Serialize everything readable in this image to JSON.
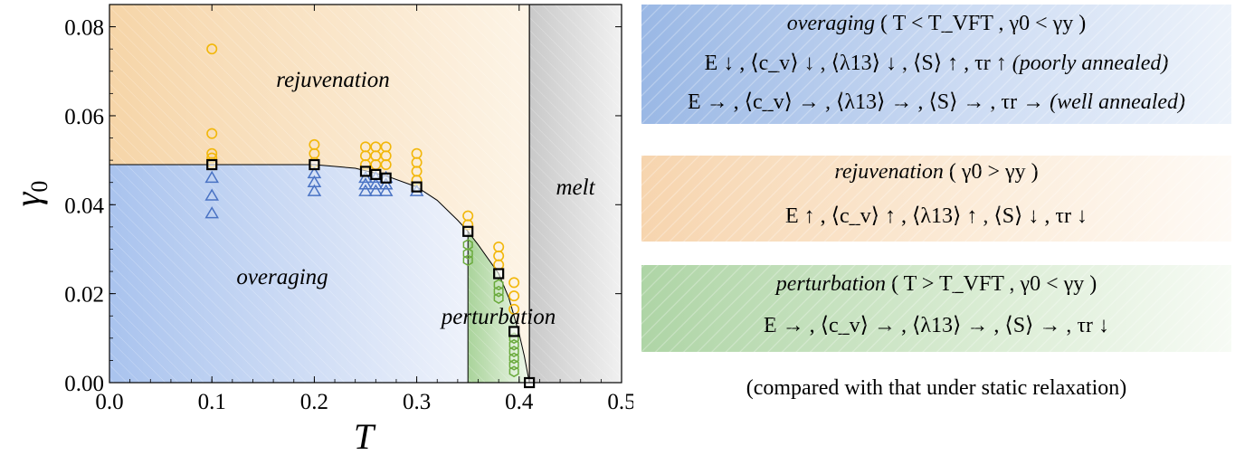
{
  "chart_data": {
    "type": "scatter",
    "xlabel": "T",
    "ylabel": "γ0",
    "xlim": [
      0.0,
      0.5
    ],
    "ylim": [
      0.0,
      0.085
    ],
    "x_ticks": [
      "0.0",
      "0.1",
      "0.2",
      "0.3",
      "0.4",
      "0.5"
    ],
    "y_ticks": [
      "0.00",
      "0.02",
      "0.04",
      "0.06",
      "0.08"
    ],
    "regions": {
      "rejuvenation": "rejuvenation",
      "overaging": "overaging",
      "perturbation": "perturbation",
      "melt": "melt"
    },
    "boundaries": {
      "T_VFT": 0.35,
      "T_melt": 0.41,
      "plateau_gamma": 0.049
    },
    "series": [
      {
        "marker": "circle",
        "color": "#f2b70a",
        "points": [
          [
            0.1,
            0.075
          ],
          [
            0.1,
            0.056
          ],
          [
            0.1,
            0.0515
          ],
          [
            0.1,
            0.0505
          ],
          [
            0.1,
            0.0495
          ],
          [
            0.2,
            0.0535
          ],
          [
            0.2,
            0.0515
          ],
          [
            0.2,
            0.0495
          ],
          [
            0.25,
            0.053
          ],
          [
            0.25,
            0.051
          ],
          [
            0.25,
            0.049
          ],
          [
            0.26,
            0.053
          ],
          [
            0.26,
            0.051
          ],
          [
            0.26,
            0.049
          ],
          [
            0.27,
            0.053
          ],
          [
            0.27,
            0.051
          ],
          [
            0.27,
            0.049
          ],
          [
            0.3,
            0.0515
          ],
          [
            0.3,
            0.0495
          ],
          [
            0.3,
            0.0475
          ],
          [
            0.3,
            0.0455
          ],
          [
            0.35,
            0.0375
          ],
          [
            0.35,
            0.0355
          ],
          [
            0.38,
            0.0305
          ],
          [
            0.38,
            0.0285
          ],
          [
            0.38,
            0.0265
          ],
          [
            0.395,
            0.0225
          ],
          [
            0.395,
            0.0195
          ],
          [
            0.395,
            0.0165
          ]
        ]
      },
      {
        "marker": "triangle",
        "color": "#4a73c4",
        "points": [
          [
            0.1,
            0.046
          ],
          [
            0.1,
            0.042
          ],
          [
            0.1,
            0.038
          ],
          [
            0.2,
            0.047
          ],
          [
            0.2,
            0.045
          ],
          [
            0.2,
            0.043
          ],
          [
            0.25,
            0.046
          ],
          [
            0.25,
            0.0445
          ],
          [
            0.25,
            0.043
          ],
          [
            0.26,
            0.046
          ],
          [
            0.26,
            0.0445
          ],
          [
            0.26,
            0.043
          ],
          [
            0.27,
            0.046
          ],
          [
            0.27,
            0.0445
          ],
          [
            0.27,
            0.043
          ],
          [
            0.3,
            0.043
          ]
        ]
      },
      {
        "marker": "hexagon",
        "color": "#6aaa3c",
        "points": [
          [
            0.35,
            0.031
          ],
          [
            0.35,
            0.029
          ],
          [
            0.35,
            0.0275
          ],
          [
            0.38,
            0.022
          ],
          [
            0.38,
            0.0205
          ],
          [
            0.38,
            0.019
          ],
          [
            0.395,
            0.01
          ],
          [
            0.395,
            0.0085
          ],
          [
            0.395,
            0.007
          ],
          [
            0.395,
            0.0055
          ],
          [
            0.395,
            0.004
          ],
          [
            0.395,
            0.0025
          ]
        ]
      },
      {
        "marker": "square",
        "color": "#000000",
        "points": [
          [
            0.1,
            0.049
          ],
          [
            0.2,
            0.049
          ],
          [
            0.25,
            0.0475
          ],
          [
            0.26,
            0.0468
          ],
          [
            0.27,
            0.046
          ],
          [
            0.3,
            0.044
          ],
          [
            0.35,
            0.034
          ],
          [
            0.38,
            0.0245
          ],
          [
            0.395,
            0.0115
          ],
          [
            0.41,
            0.0
          ]
        ]
      }
    ],
    "yield_curve": [
      [
        0.0,
        0.049
      ],
      [
        0.2,
        0.049
      ],
      [
        0.24,
        0.0482
      ],
      [
        0.27,
        0.0465
      ],
      [
        0.3,
        0.044
      ],
      [
        0.32,
        0.041
      ],
      [
        0.34,
        0.0365
      ],
      [
        0.35,
        0.034
      ],
      [
        0.36,
        0.031
      ],
      [
        0.38,
        0.0245
      ],
      [
        0.39,
        0.019
      ],
      [
        0.4,
        0.011
      ],
      [
        0.405,
        0.006
      ],
      [
        0.41,
        0.0
      ]
    ]
  },
  "legend": {
    "overaging": {
      "title_word": "overaging",
      "title_cond": " ( T < T_VFT , γ0 < γy )",
      "line1": "E ↓ , ⟨c_v⟩ ↓ , ⟨λ13⟩ ↓ , ⟨S⟩ ↑ , τr ↑",
      "line1_note": "(poorly annealed)",
      "line2": "E → , ⟨c_v⟩ → , ⟨λ13⟩ → , ⟨S⟩ → , τr →",
      "line2_note": "(well annealed)"
    },
    "rejuvenation": {
      "title_word": "rejuvenation",
      "title_cond": " ( γ0 > γy )",
      "line1": "E ↑ , ⟨c_v⟩ ↑ , ⟨λ13⟩ ↑ , ⟨S⟩ ↓ , τr ↓"
    },
    "perturbation": {
      "title_word": "perturbation",
      "title_cond": " ( T > T_VFT , γ0 < γy )",
      "line1": "E → , ⟨c_v⟩ → , ⟨λ13⟩ → , ⟨S⟩ → , τr ↓"
    },
    "footnote": "(compared with that under static relaxation)"
  }
}
